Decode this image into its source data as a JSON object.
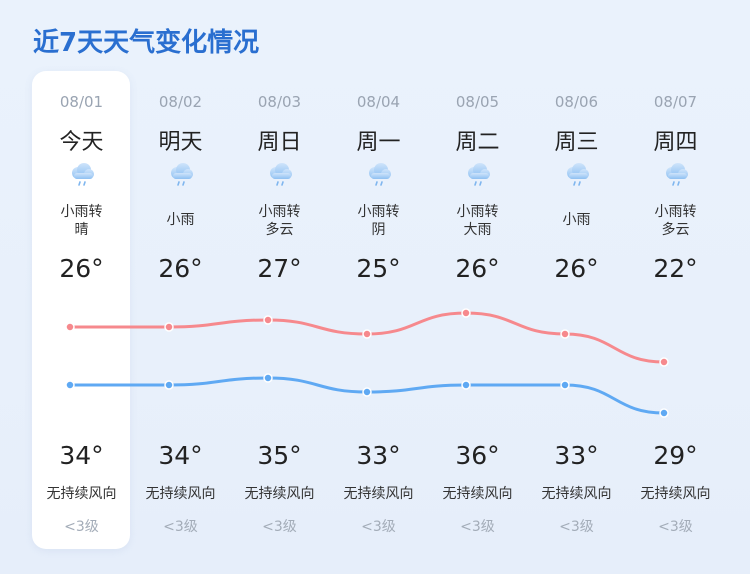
{
  "title": "近7天天气变化情况",
  "colors": {
    "high_line": "#f6898d",
    "low_line": "#5fa9f3",
    "title": "#2a6fd0"
  },
  "days": [
    {
      "date": "08/01",
      "label": "今天",
      "icon": "rain-cloud-icon",
      "condition": [
        "小雨转",
        "晴"
      ],
      "high": "26°",
      "low": "34°",
      "wind": "无持续风向",
      "level": "<3级"
    },
    {
      "date": "08/02",
      "label": "明天",
      "icon": "rain-cloud-icon",
      "condition": [
        "小雨",
        ""
      ],
      "high": "26°",
      "low": "34°",
      "wind": "无持续风向",
      "level": "<3级"
    },
    {
      "date": "08/03",
      "label": "周日",
      "icon": "rain-cloud-icon",
      "condition": [
        "小雨转",
        "多云"
      ],
      "high": "27°",
      "low": "35°",
      "wind": "无持续风向",
      "level": "<3级"
    },
    {
      "date": "08/04",
      "label": "周一",
      "icon": "rain-cloud-icon",
      "condition": [
        "小雨转",
        "阴"
      ],
      "high": "25°",
      "low": "33°",
      "wind": "无持续风向",
      "level": "<3级"
    },
    {
      "date": "08/05",
      "label": "周二",
      "icon": "rain-cloud-icon",
      "condition": [
        "小雨转",
        "大雨"
      ],
      "high": "26°",
      "low": "36°",
      "wind": "无持续风向",
      "level": "<3级"
    },
    {
      "date": "08/06",
      "label": "周三",
      "icon": "rain-cloud-icon",
      "condition": [
        "小雨",
        ""
      ],
      "high": "26°",
      "low": "33°",
      "wind": "无持续风向",
      "level": "<3级"
    },
    {
      "date": "08/07",
      "label": "周四",
      "icon": "rain-cloud-icon",
      "condition": [
        "小雨转",
        "多云"
      ],
      "high": "22°",
      "low": "29°",
      "wind": "无持续风向",
      "level": "<3级"
    }
  ],
  "chart_data": {
    "type": "line",
    "categories": [
      "08/01",
      "08/02",
      "08/03",
      "08/04",
      "08/05",
      "08/06",
      "08/07"
    ],
    "series": [
      {
        "values": [
          34,
          34,
          35,
          33,
          36,
          33,
          29
        ]
      },
      {
        "values": [
          26,
          26,
          27,
          25,
          26,
          26,
          22
        ]
      }
    ]
  }
}
